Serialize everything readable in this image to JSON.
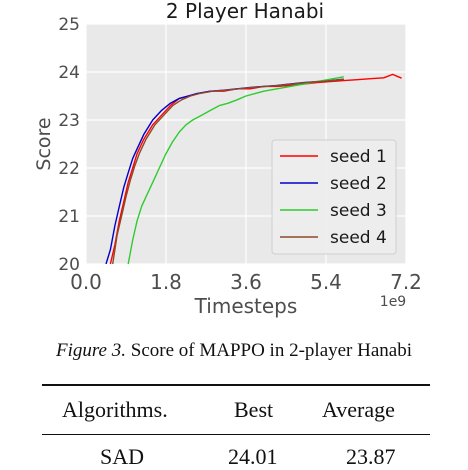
{
  "chart_data": {
    "type": "line",
    "title": "2 Player Hanabi",
    "xlabel": "Timesteps",
    "ylabel": "Score",
    "x_offset_label": "1e9",
    "xlim": [
      0,
      7.2
    ],
    "ylim": [
      20,
      25
    ],
    "xticks": [
      "0.0",
      "1.8",
      "3.6",
      "5.4",
      "7.2"
    ],
    "yticks": [
      "20",
      "21",
      "22",
      "23",
      "24",
      "25"
    ],
    "grid": true,
    "legend_position": "lower-right",
    "series": [
      {
        "name": "seed 1",
        "color": "#ff0000",
        "x": [
          0.55,
          0.65,
          0.75,
          0.85,
          0.95,
          1.05,
          1.15,
          1.3,
          1.5,
          1.7,
          1.9,
          2.1,
          2.3,
          2.5,
          2.8,
          3.1,
          3.4,
          3.7,
          4.0,
          4.3,
          4.6,
          4.9,
          5.2,
          5.5,
          5.8,
          6.1,
          6.4,
          6.7,
          6.9,
          7.1
        ],
        "y": [
          20.0,
          20.4,
          20.9,
          21.3,
          21.7,
          22.0,
          22.3,
          22.6,
          22.9,
          23.1,
          23.3,
          23.45,
          23.5,
          23.55,
          23.6,
          23.6,
          23.65,
          23.65,
          23.7,
          23.7,
          23.72,
          23.75,
          23.78,
          23.8,
          23.82,
          23.84,
          23.86,
          23.88,
          23.95,
          23.87
        ]
      },
      {
        "name": "seed 2",
        "color": "#0000cc",
        "x": [
          0.45,
          0.55,
          0.65,
          0.75,
          0.85,
          0.95,
          1.05,
          1.15,
          1.3,
          1.5,
          1.7,
          1.9,
          2.1,
          2.3,
          2.5,
          2.8,
          3.1,
          3.4,
          3.7,
          4.0,
          4.3,
          4.6,
          4.9,
          5.2,
          5.5,
          5.8
        ],
        "y": [
          20.0,
          20.3,
          20.8,
          21.2,
          21.6,
          21.9,
          22.2,
          22.4,
          22.7,
          23.0,
          23.2,
          23.35,
          23.45,
          23.5,
          23.55,
          23.6,
          23.62,
          23.65,
          23.68,
          23.7,
          23.72,
          23.75,
          23.78,
          23.8,
          23.82,
          23.85
        ]
      },
      {
        "name": "seed 3",
        "color": "#2ecc2e",
        "x": [
          0.95,
          1.05,
          1.15,
          1.25,
          1.35,
          1.5,
          1.65,
          1.8,
          1.95,
          2.1,
          2.25,
          2.4,
          2.6,
          2.8,
          3.0,
          3.2,
          3.4,
          3.6,
          3.8,
          4.0,
          4.3,
          4.6,
          4.9,
          5.2,
          5.5,
          5.8
        ],
        "y": [
          20.0,
          20.5,
          20.9,
          21.2,
          21.4,
          21.7,
          22.0,
          22.3,
          22.55,
          22.75,
          22.9,
          23.0,
          23.1,
          23.2,
          23.3,
          23.35,
          23.42,
          23.5,
          23.55,
          23.6,
          23.65,
          23.7,
          23.75,
          23.8,
          23.85,
          23.9
        ]
      },
      {
        "name": "seed 4",
        "color": "#8b4a2b",
        "x": [
          0.6,
          0.7,
          0.8,
          0.9,
          1.0,
          1.1,
          1.2,
          1.35,
          1.55,
          1.75,
          1.95,
          2.15,
          2.35,
          2.55,
          2.85,
          3.15,
          3.45,
          3.75,
          4.05,
          4.35,
          4.65,
          4.95,
          5.25,
          5.55,
          5.8
        ],
        "y": [
          20.0,
          20.6,
          21.0,
          21.4,
          21.75,
          22.05,
          22.3,
          22.6,
          22.9,
          23.1,
          23.3,
          23.42,
          23.5,
          23.55,
          23.6,
          23.62,
          23.65,
          23.68,
          23.7,
          23.72,
          23.75,
          23.78,
          23.8,
          23.82,
          23.85
        ]
      }
    ]
  },
  "caption": {
    "figure_label": "Figure 3.",
    "text": "Score of MAPPO in 2-player Hanabi"
  },
  "table": {
    "headers": [
      "Algorithms.",
      "Best",
      "Average"
    ],
    "rows": [
      [
        "SAD",
        "24.01",
        "23.87"
      ]
    ]
  }
}
